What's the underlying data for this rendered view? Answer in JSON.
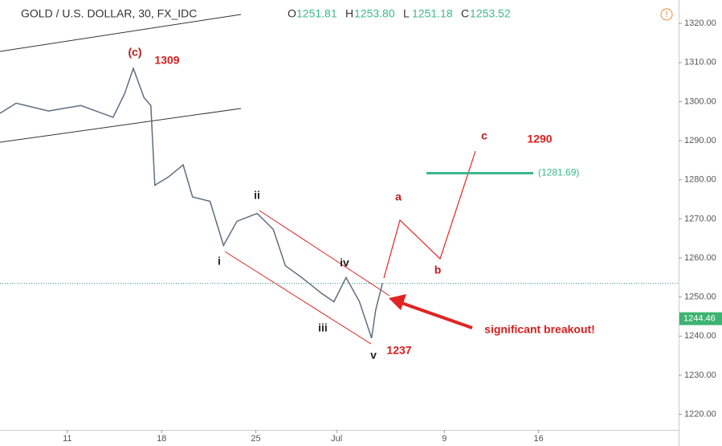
{
  "chart_data": {
    "type": "line",
    "header": {
      "symbol": "GOLD / U.S. DOLLAR, 30, FX_IDC",
      "ohlc": [
        {
          "key": "O",
          "value": "1251.81"
        },
        {
          "key": "H",
          "value": "1253.80"
        },
        {
          "key": "L",
          "value": "1251.18"
        },
        {
          "key": "C",
          "value": "1253.52"
        }
      ]
    },
    "x": [
      6,
      7.2,
      9.6,
      12,
      14.4,
      15.25,
      15.9,
      16.7,
      17.2,
      17.5,
      18.5,
      19.6,
      20.3,
      21.6,
      22.6,
      23.6,
      25.1,
      26.3,
      27.2,
      28.4,
      29.9,
      30.8,
      31.7,
      32.7,
      33.6,
      33.9,
      34.4
    ],
    "series": [
      {
        "color": "#5d6d7e",
        "values": [
          1297,
          1299.6,
          1297.6,
          1299,
          1296,
          1302,
          1308.5,
          1301,
          1299,
          1278.6,
          1280.7,
          1283.8,
          1275.6,
          1274.5,
          1263.2,
          1269.4,
          1271.4,
          1267.3,
          1258,
          1255,
          1250.9,
          1248.8,
          1255,
          1248.8,
          1239.5,
          1246.7,
          1253.5
        ]
      }
    ],
    "xlim": [
      6,
      56.4
    ],
    "xticks": [
      11,
      18,
      25,
      {
        "value": 31,
        "label": "Jul"
      },
      {
        "value": 39,
        "label": "9"
      },
      {
        "value": 46,
        "label": "16"
      }
    ],
    "ylim": [
      1216,
      1326
    ],
    "yticks": [
      {
        "value": 1220,
        "label": "1220.00"
      },
      {
        "value": 1230,
        "label": "1230.00"
      },
      {
        "value": 1240,
        "label": "1240.00"
      },
      {
        "value": 1250,
        "label": "1250.00"
      },
      {
        "value": 1260,
        "label": "1260.00"
      },
      {
        "value": 1270,
        "label": "1270.00"
      },
      {
        "value": 1280,
        "label": "1280.00"
      },
      {
        "value": 1290,
        "label": "1290.00"
      },
      {
        "value": 1300,
        "label": "1300.00"
      },
      {
        "value": 1310,
        "label": "1310.00"
      },
      {
        "value": 1320,
        "label": "1320.00"
      }
    ],
    "last_price": 1253.52,
    "price_label": 1244.46,
    "level": {
      "value": 1281.69,
      "label": "(1281.69)",
      "color": "#3cb88a"
    },
    "annotations": [
      "(c)",
      "1309",
      "1290",
      "ii",
      "i",
      "iv",
      "iii",
      "v",
      "1237",
      "a",
      "b",
      "c",
      "significant breakout!"
    ]
  }
}
